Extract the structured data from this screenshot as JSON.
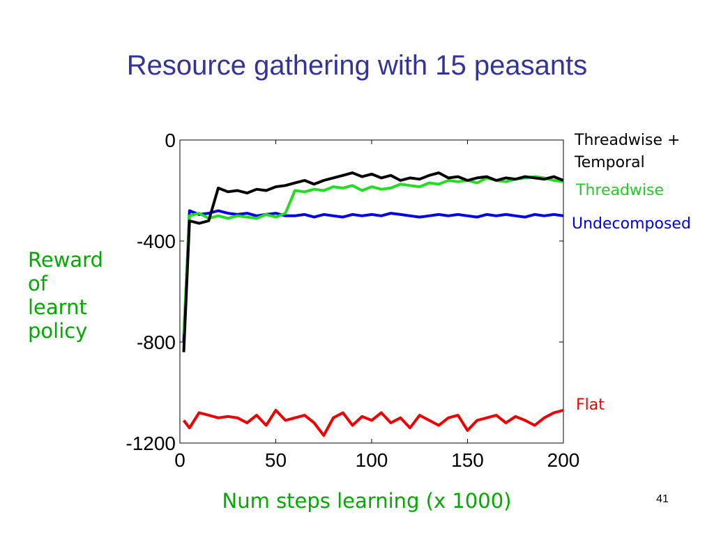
{
  "slide": {
    "title": "Resource gathering with 15 peasants",
    "number": "41"
  },
  "chart_data": {
    "type": "line",
    "title": "Resource gathering with 15 peasants",
    "xlabel": "Num steps learning (x 1000)",
    "ylabel_lines": [
      "Reward",
      "of",
      "learnt",
      "policy"
    ],
    "xlim": [
      0,
      200
    ],
    "ylim": [
      -1200,
      0
    ],
    "xticks": [
      0,
      50,
      100,
      150,
      200
    ],
    "yticks": [
      0,
      -400,
      -800,
      -1200
    ],
    "grid": false,
    "legend": "right",
    "x": [
      2,
      5,
      10,
      15,
      20,
      25,
      30,
      35,
      40,
      45,
      50,
      55,
      60,
      65,
      70,
      75,
      80,
      85,
      90,
      95,
      100,
      105,
      110,
      115,
      120,
      125,
      130,
      135,
      140,
      145,
      150,
      155,
      160,
      165,
      170,
      175,
      180,
      185,
      190,
      195,
      200
    ],
    "series": [
      {
        "name_lines": [
          "Threadwise +",
          "Temporal"
        ],
        "color": "#000000",
        "values": [
          -840,
          -320,
          -330,
          -320,
          -190,
          -205,
          -200,
          -210,
          -195,
          -200,
          -185,
          -180,
          -170,
          -160,
          -175,
          -160,
          -150,
          -140,
          -130,
          -145,
          -135,
          -150,
          -140,
          -160,
          -150,
          -155,
          -140,
          -130,
          -150,
          -145,
          -160,
          -150,
          -145,
          -160,
          -150,
          -155,
          -145,
          -150,
          -155,
          -145,
          -160
        ]
      },
      {
        "name_lines": [
          "Threadwise"
        ],
        "color": "#22dd22",
        "values": [
          -770,
          -300,
          -290,
          -310,
          -300,
          -310,
          -300,
          -305,
          -310,
          -295,
          -305,
          -290,
          -200,
          -205,
          -195,
          -200,
          -185,
          -190,
          -180,
          -200,
          -185,
          -195,
          -190,
          -175,
          -180,
          -185,
          -170,
          -175,
          -160,
          -165,
          -160,
          -170,
          -150,
          -160,
          -165,
          -155,
          -150,
          -145,
          -150,
          -160,
          -165
        ]
      },
      {
        "name_lines": [
          "Undecomposed"
        ],
        "color": "#0000ee",
        "values": [
          -800,
          -280,
          -295,
          -290,
          -280,
          -290,
          -295,
          -290,
          -300,
          -295,
          -290,
          -300,
          -300,
          -295,
          -305,
          -295,
          -300,
          -305,
          -295,
          -300,
          -295,
          -300,
          -290,
          -295,
          -300,
          -305,
          -300,
          -295,
          -300,
          -295,
          -300,
          -305,
          -295,
          -300,
          -295,
          -300,
          -305,
          -295,
          -300,
          -295,
          -300
        ]
      },
      {
        "name_lines": [
          "Flat"
        ],
        "color": "#ee0000",
        "values": [
          -1110,
          -1140,
          -1080,
          -1090,
          -1100,
          -1095,
          -1100,
          -1120,
          -1090,
          -1130,
          -1070,
          -1110,
          -1100,
          -1090,
          -1120,
          -1170,
          -1100,
          -1080,
          -1130,
          -1095,
          -1110,
          -1080,
          -1120,
          -1100,
          -1140,
          -1090,
          -1110,
          -1130,
          -1100,
          -1090,
          -1150,
          -1110,
          -1100,
          -1090,
          -1120,
          -1095,
          -1110,
          -1130,
          -1100,
          -1080,
          -1070
        ]
      }
    ]
  }
}
